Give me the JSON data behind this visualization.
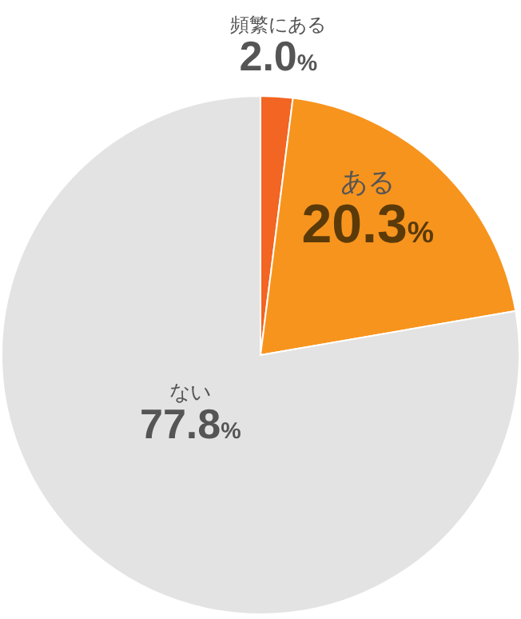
{
  "chart_data": {
    "type": "pie",
    "categories": [
      "頻繁にある",
      "ある",
      "ない"
    ],
    "values": [
      2.0,
      20.3,
      77.8
    ],
    "colors": [
      "#f26522",
      "#f7941d",
      "#e3e3e3"
    ],
    "value_labels": [
      "2.0%",
      "20.3%",
      "77.8%"
    ]
  }
}
